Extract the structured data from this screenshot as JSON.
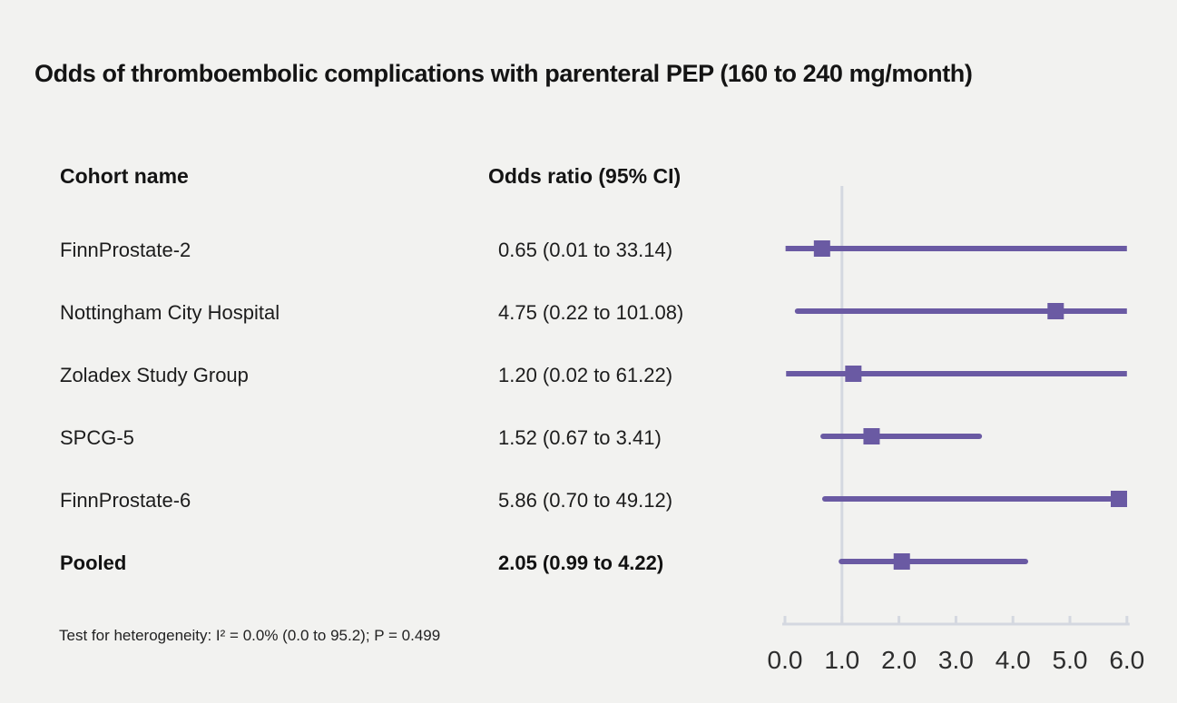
{
  "title": "Odds of thromboembolic complications with parenteral PEP (160 to 240 mg/month)",
  "columns": {
    "cohort": "Cohort name",
    "odds": "Odds ratio (95% CI)"
  },
  "footnote": "Test for heterogeneity: I² = 0.0% (0.0 to 95.2); P = 0.499",
  "colors": {
    "background": "#f2f2f0",
    "marker_purple": "#6a5aa3",
    "axis_gray": "#d4d8e0",
    "text": "#1a1a1a"
  },
  "chart_data": {
    "type": "forest",
    "title": "Odds of thromboembolic complications with parenteral PEP (160 to 240 mg/month)",
    "xlabel": "",
    "xlim": [
      0.0,
      6.0
    ],
    "x_tick_labels": [
      "0.0",
      "1.0",
      "2.0",
      "3.0",
      "4.0",
      "5.0",
      "6.0"
    ],
    "x_tick_values": [
      0,
      1,
      2,
      3,
      4,
      5,
      6
    ],
    "reference_line_x": 1.0,
    "grid": false,
    "legend": "none",
    "rows": [
      {
        "name": "FinnProstate-2",
        "label": "0.65 (0.01 to 33.14)",
        "estimate": 0.65,
        "ci_low": 0.01,
        "ci_high": 33.14,
        "bold": false
      },
      {
        "name": "Nottingham City Hospital",
        "label": "4.75 (0.22 to 101.08)",
        "estimate": 4.75,
        "ci_low": 0.22,
        "ci_high": 101.08,
        "bold": false
      },
      {
        "name": "Zoladex Study Group",
        "label": "1.20 (0.02 to 61.22)",
        "estimate": 1.2,
        "ci_low": 0.02,
        "ci_high": 61.22,
        "bold": false
      },
      {
        "name": "SPCG-5",
        "label": "1.52 (0.67 to 3.41)",
        "estimate": 1.52,
        "ci_low": 0.67,
        "ci_high": 3.41,
        "bold": false
      },
      {
        "name": "FinnProstate-6",
        "label": "5.86 (0.70 to 49.12)",
        "estimate": 5.86,
        "ci_low": 0.7,
        "ci_high": 49.12,
        "bold": false
      },
      {
        "name": "Pooled",
        "label": "2.05 (0.99 to 4.22)",
        "estimate": 2.05,
        "ci_low": 0.99,
        "ci_high": 4.22,
        "bold": true
      }
    ]
  }
}
